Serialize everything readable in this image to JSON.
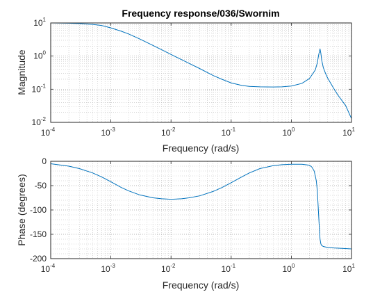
{
  "chart_data": [
    {
      "type": "line",
      "title": "Frequency response/036/Swornim",
      "xlabel": "Frequency (rad/s)",
      "ylabel": "Magnitude",
      "xscale": "log",
      "yscale": "log",
      "xlim": [
        0.0001,
        10
      ],
      "ylim": [
        0.01,
        10
      ],
      "grid": "major and minor, dotted",
      "x_ticks": [
        {
          "base": "10",
          "exp": "-4"
        },
        {
          "base": "10",
          "exp": "-3"
        },
        {
          "base": "10",
          "exp": "-2"
        },
        {
          "base": "10",
          "exp": "-1"
        },
        {
          "base": "10",
          "exp": "0"
        },
        {
          "base": "10",
          "exp": "1"
        }
      ],
      "y_ticks": [
        {
          "base": "10",
          "exp": "-2"
        },
        {
          "base": "10",
          "exp": "-1"
        },
        {
          "base": "10",
          "exp": "0"
        },
        {
          "base": "10",
          "exp": "1"
        }
      ],
      "line_color": "#0072BD",
      "series": [
        {
          "x": [
            0.0001,
            0.0002,
            0.0003,
            0.0005,
            0.0007,
            0.001,
            0.0015,
            0.002,
            0.003,
            0.005,
            0.007,
            0.01,
            0.015,
            0.02,
            0.03,
            0.05,
            0.07,
            0.1,
            0.15,
            0.2,
            0.3,
            0.5,
            0.7,
            1.0,
            1.5,
            2.0,
            2.5,
            2.7,
            2.85,
            3.0,
            3.1,
            3.2,
            3.4,
            3.7,
            4.0,
            5.0,
            6.0,
            8.0,
            10.0
          ],
          "y": [
            10.0,
            9.8,
            9.6,
            9.0,
            8.4,
            7.1,
            5.6,
            4.6,
            3.3,
            2.1,
            1.55,
            1.12,
            0.78,
            0.6,
            0.42,
            0.26,
            0.2,
            0.155,
            0.13,
            0.122,
            0.118,
            0.117,
            0.118,
            0.125,
            0.15,
            0.21,
            0.38,
            0.62,
            1.1,
            1.65,
            1.2,
            0.75,
            0.45,
            0.3,
            0.22,
            0.11,
            0.065,
            0.032,
            0.013
          ]
        }
      ]
    },
    {
      "type": "line",
      "title": "",
      "xlabel": "Frequency (rad/s)",
      "ylabel": "Phase (degrees)",
      "xscale": "log",
      "xlim": [
        0.0001,
        10
      ],
      "ylim": [
        -200,
        0
      ],
      "grid": "major and minor, dotted",
      "x_ticks": [
        {
          "base": "10",
          "exp": "-4"
        },
        {
          "base": "10",
          "exp": "-3"
        },
        {
          "base": "10",
          "exp": "-2"
        },
        {
          "base": "10",
          "exp": "-1"
        },
        {
          "base": "10",
          "exp": "0"
        },
        {
          "base": "10",
          "exp": "1"
        }
      ],
      "y_ticks": [
        "0",
        "-50",
        "-100",
        "-150",
        "-200"
      ],
      "line_color": "#0072BD",
      "series": [
        {
          "x": [
            0.0001,
            0.0002,
            0.0003,
            0.0005,
            0.0007,
            0.001,
            0.0015,
            0.002,
            0.003,
            0.005,
            0.007,
            0.01,
            0.015,
            0.02,
            0.03,
            0.05,
            0.07,
            0.1,
            0.15,
            0.2,
            0.3,
            0.5,
            0.7,
            1.0,
            1.5,
            2.0,
            2.2,
            2.4,
            2.6,
            2.7,
            2.8,
            2.9,
            3.0,
            3.1,
            3.2,
            3.4,
            3.7,
            4.0,
            5.0,
            7.0,
            10.0
          ],
          "y": [
            -5,
            -10,
            -15,
            -24,
            -32,
            -42,
            -54,
            -61,
            -69,
            -75,
            -77,
            -78,
            -77,
            -75,
            -71,
            -62,
            -54,
            -44,
            -32,
            -24,
            -15,
            -9,
            -7,
            -6,
            -6,
            -8,
            -12,
            -20,
            -40,
            -60,
            -95,
            -130,
            -160,
            -170,
            -173,
            -175,
            -176,
            -177,
            -178,
            -179,
            -180
          ]
        }
      ]
    }
  ]
}
